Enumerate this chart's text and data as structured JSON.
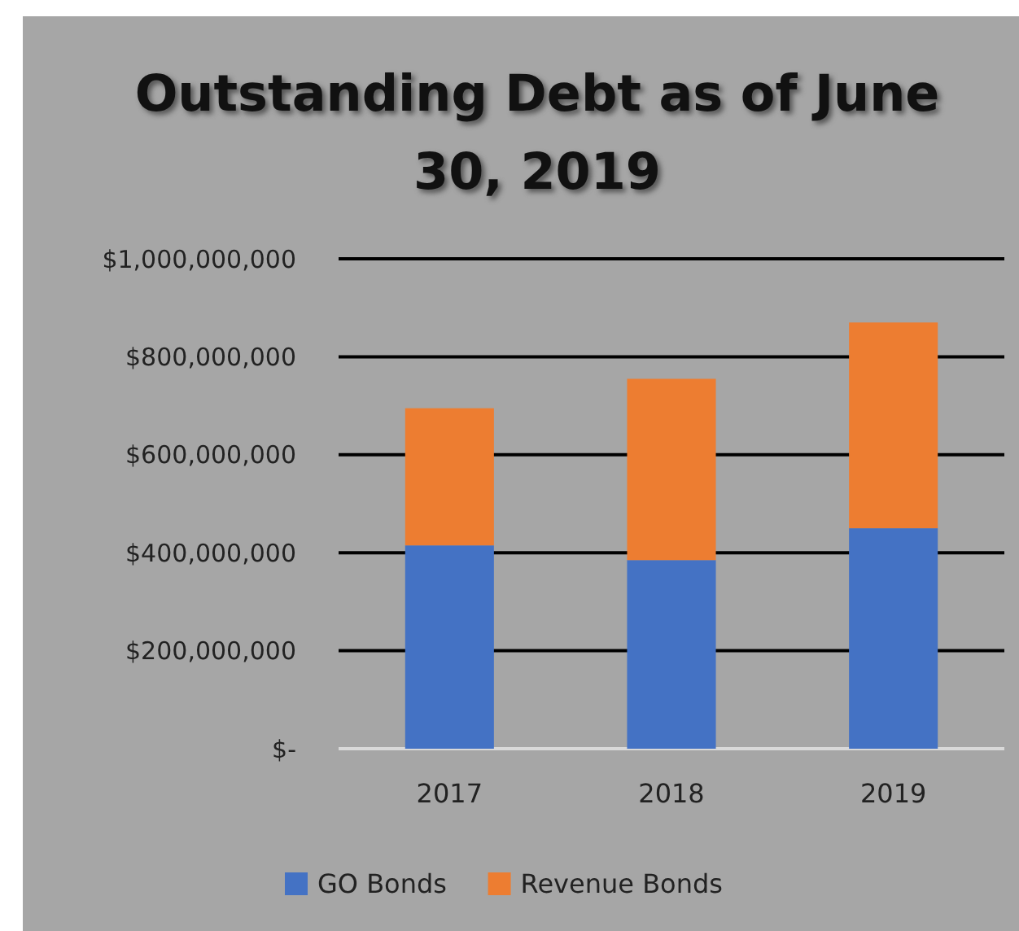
{
  "chart_data": {
    "type": "bar",
    "title": "Outstanding Debt as of June 30, 2019",
    "categories": [
      "2017",
      "2018",
      "2019"
    ],
    "stacked": true,
    "series": [
      {
        "name": "GO Bonds",
        "color": "#4472c4",
        "values": [
          415000000,
          385000000,
          450000000
        ]
      },
      {
        "name": "Revenue Bonds",
        "color": "#ed7d31",
        "values": [
          280000000,
          370000000,
          420000000
        ]
      }
    ],
    "ylim": [
      0,
      1000000000
    ],
    "yticks": [
      {
        "value": 0,
        "label": "$-"
      },
      {
        "value": 200000000,
        "label": "$200,000,000"
      },
      {
        "value": 400000000,
        "label": "$400,000,000"
      },
      {
        "value": 600000000,
        "label": "$600,000,000"
      },
      {
        "value": 800000000,
        "label": "$800,000,000"
      },
      {
        "value": 1000000000,
        "label": "$1,000,000,000"
      }
    ],
    "grid": "y",
    "legend": "bottom"
  }
}
